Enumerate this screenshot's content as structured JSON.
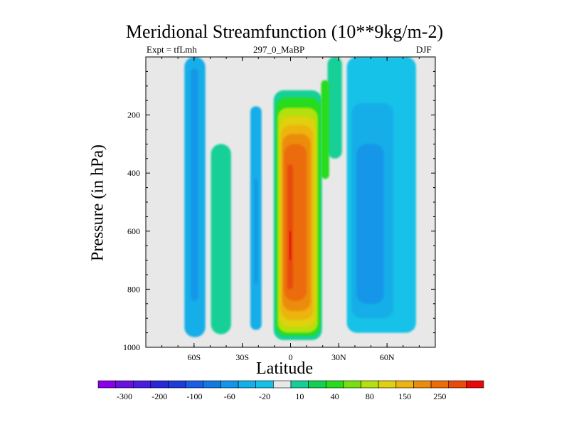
{
  "chart_data": {
    "type": "contour",
    "title": "Meridional Streamfunction (10**9kg/m-2)",
    "subtitle_left": "Expt = tfLmh",
    "subtitle_center": "297_0_MaBP",
    "subtitle_right": "DJF",
    "xlabel": "Latitude",
    "ylabel": "Pressure (in hPa)",
    "xlim": [
      -90,
      90
    ],
    "ylim": [
      1000,
      0
    ],
    "x_ticks": [
      {
        "value": -60,
        "label": "60S"
      },
      {
        "value": -30,
        "label": "30S"
      },
      {
        "value": 0,
        "label": "0"
      },
      {
        "value": 30,
        "label": "30N"
      },
      {
        "value": 60,
        "label": "60N"
      }
    ],
    "y_ticks": [
      {
        "value": 200,
        "label": "200"
      },
      {
        "value": 400,
        "label": "400"
      },
      {
        "value": 600,
        "label": "600"
      },
      {
        "value": 800,
        "label": "800"
      },
      {
        "value": 1000,
        "label": "1000"
      }
    ],
    "background_color": "#e8e8e8",
    "colorbar": {
      "colors": [
        "#8a00e8",
        "#6a10e0",
        "#4a1ee0",
        "#2828d8",
        "#1e3cd8",
        "#1a5ee6",
        "#1478e0",
        "#1296e8",
        "#14aee8",
        "#14c2e8",
        "#e8e8e8",
        "#14d098",
        "#14d050",
        "#28dc1c",
        "#78e010",
        "#b4e010",
        "#e0d010",
        "#ecb410",
        "#ec8c0c",
        "#ec6c08",
        "#e84c08",
        "#e80808"
      ],
      "labels": [
        {
          "text": "-300",
          "boundary": 1
        },
        {
          "text": "-200",
          "boundary": 3
        },
        {
          "text": "-100",
          "boundary": 5
        },
        {
          "text": "-60",
          "boundary": 7
        },
        {
          "text": "-20",
          "boundary": 9
        },
        {
          "text": "10",
          "boundary": 11
        },
        {
          "text": "40",
          "boundary": 13
        },
        {
          "text": "80",
          "boundary": 15
        },
        {
          "text": "150",
          "boundary": 17
        },
        {
          "text": "250",
          "boundary": 19
        }
      ]
    },
    "regions": [
      {
        "name": "tropical-cell",
        "color": "#14d098",
        "lat_range": [
          -10.5,
          19.5
        ],
        "p_range": [
          115,
          975
        ]
      },
      {
        "name": "tropical-cell",
        "color": "#28dc1c",
        "lat_range": [
          -9,
          18.5
        ],
        "p_range": [
          140,
          960
        ]
      },
      {
        "name": "tropical-cell",
        "color": "#b4e010",
        "lat_range": [
          -8,
          17
        ],
        "p_range": [
          175,
          950
        ]
      },
      {
        "name": "tropical-cell",
        "color": "#e0d010",
        "lat_range": [
          -7,
          15.5
        ],
        "p_range": [
          205,
          930
        ]
      },
      {
        "name": "tropical-cell",
        "color": "#ecb410",
        "lat_range": [
          -6,
          14
        ],
        "p_range": [
          235,
          905
        ]
      },
      {
        "name": "tropical-cell",
        "color": "#ec8c0c",
        "lat_range": [
          -5,
          12.5
        ],
        "p_range": [
          265,
          875
        ]
      },
      {
        "name": "tropical-cell",
        "color": "#ec6c08",
        "lat_range": [
          -4,
          10
        ],
        "p_range": [
          300,
          840
        ]
      },
      {
        "name": "tropical-cell",
        "color": "#e84c08",
        "lat_range": [
          -2,
          1.5
        ],
        "p_range": [
          370,
          800
        ]
      },
      {
        "name": "tropical-core",
        "color": "#e80808",
        "lat_range": [
          -0.8,
          0.3
        ],
        "p_range": [
          600,
          700
        ]
      },
      {
        "name": "southern-ferrel",
        "color": "#14d098",
        "lat_range": [
          -49.5,
          -37
        ],
        "p_range": [
          300,
          955
        ]
      },
      {
        "name": "southern-polar",
        "color": "#14aee8",
        "lat_range": [
          -66,
          -53
        ],
        "p_range": [
          0,
          965
        ]
      },
      {
        "name": "southern-polar",
        "color": "#1296e8",
        "lat_range": [
          -62,
          -57.5
        ],
        "p_range": [
          40,
          840
        ]
      },
      {
        "name": "subtropical-s",
        "color": "#14aee8",
        "lat_range": [
          -25,
          -18
        ],
        "p_range": [
          170,
          940
        ]
      },
      {
        "name": "subtropical-s",
        "color": "#1296e8",
        "lat_range": [
          -22.5,
          -20.5
        ],
        "p_range": [
          420,
          780
        ]
      },
      {
        "name": "northern-cell",
        "color": "#14c2e8",
        "lat_range": [
          35,
          78
        ],
        "p_range": [
          0,
          950
        ]
      },
      {
        "name": "northern-cell",
        "color": "#14aee8",
        "lat_range": [
          38,
          64
        ],
        "p_range": [
          160,
          900
        ]
      },
      {
        "name": "northern-cell",
        "color": "#1296e8",
        "lat_range": [
          41,
          58
        ],
        "p_range": [
          300,
          850
        ]
      },
      {
        "name": "northern-upper",
        "color": "#14d098",
        "lat_range": [
          23,
          32
        ],
        "p_range": [
          0,
          350
        ]
      },
      {
        "name": "northern-upper",
        "color": "#28dc1c",
        "lat_range": [
          19,
          24
        ],
        "p_range": [
          80,
          420
        ]
      }
    ]
  }
}
